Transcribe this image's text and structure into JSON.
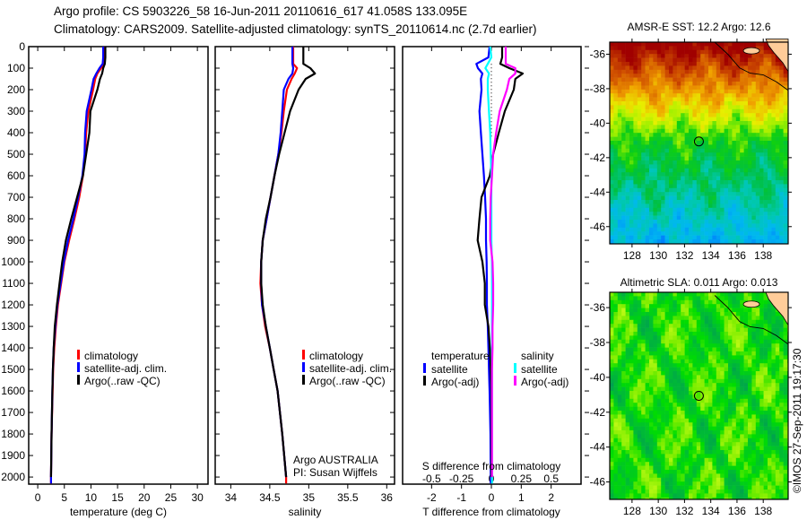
{
  "title": {
    "line1": "Argo profile: CS 5903226_58 16-Jun-2011 20110616_617 41.058S 133.095E",
    "line2": "Climatology: CARS2009. Satellite-adjusted climatology: synTS_20110614.nc (2.7d earlier)"
  },
  "credits": {
    "program": "Argo AUSTRALIA",
    "pi": "PI: Susan Wijffels",
    "copyright": "©IMOS 27-Sep-2011 19:17:30"
  },
  "colors": {
    "climatology": "#ff0000",
    "satellite": "#0000ff",
    "argo": "#000000",
    "sal_satellite": "#00ffff",
    "sal_argo": "#ff00ff",
    "land": "#ffcc99"
  },
  "chart_data": [
    {
      "type": "line",
      "id": "temperature",
      "xlabel": "temperature (deg C)",
      "ylabel": "depth",
      "xlim": [
        -1.7,
        32
      ],
      "ylim": [
        2033,
        0
      ],
      "xticks": [
        0,
        5,
        10,
        15,
        20,
        25,
        30
      ],
      "xtick_labels": [
        "0",
        "5",
        "10",
        "15",
        "20",
        "25",
        "30"
      ],
      "yticks": [
        0,
        100,
        200,
        300,
        400,
        500,
        600,
        700,
        800,
        900,
        1000,
        1100,
        1200,
        1300,
        1400,
        1500,
        1600,
        1700,
        1800,
        1900,
        2000
      ],
      "ytick_labels": [
        "0",
        "100",
        "200",
        "300",
        "400",
        "500",
        "600",
        "700",
        "800",
        "900",
        "1000",
        "1100",
        "1200",
        "1300",
        "1400",
        "1500",
        "1600",
        "1700",
        "1800",
        "1900",
        "2000"
      ],
      "legend": [
        "climatology",
        "satellite-adj. clim.",
        "Argo(..raw -QC)"
      ],
      "legend_placement": "lower-right",
      "depth": [
        0,
        50,
        80,
        100,
        125,
        150,
        200,
        300,
        400,
        500,
        600,
        700,
        800,
        900,
        1000,
        1100,
        1200,
        1300,
        1400,
        1500,
        1600,
        1800,
        2000,
        2030
      ],
      "series": [
        {
          "name": "climatology",
          "color": "#ff0000",
          "values": [
            12.5,
            12.5,
            12.4,
            11.9,
            11.2,
            10.8,
            10.4,
            9.5,
            9.1,
            8.9,
            8.5,
            7.8,
            6.9,
            5.9,
            5.0,
            4.4,
            3.8,
            3.4,
            3.1,
            2.9,
            2.8,
            2.6,
            2.5,
            2.5
          ]
        },
        {
          "name": "satellite-adj. clim.",
          "color": "#0000ff",
          "values": [
            12.3,
            12.3,
            12.2,
            11.6,
            11.0,
            10.5,
            10.1,
            9.2,
            8.9,
            8.8,
            8.4,
            7.6,
            6.7,
            5.7,
            4.9,
            4.3,
            3.7,
            3.3,
            3.0,
            2.85,
            2.75,
            2.6,
            2.5,
            2.5
          ]
        },
        {
          "name": "Argo(..raw -QC)",
          "color": "#000000",
          "values": [
            12.7,
            12.7,
            12.6,
            12.3,
            12.1,
            11.7,
            11.2,
            9.9,
            9.7,
            9.1,
            8.5,
            7.4,
            6.3,
            5.3,
            4.6,
            4.1,
            3.6,
            3.2,
            3.0,
            2.85,
            2.75,
            2.6,
            2.5,
            null
          ]
        }
      ]
    },
    {
      "type": "line",
      "id": "salinity",
      "xlabel": "salinity",
      "xlim": [
        33.8,
        36.1
      ],
      "ylim": [
        2033,
        0
      ],
      "xticks": [
        34,
        34.5,
        35,
        35.5,
        36
      ],
      "xtick_labels": [
        "34",
        "34.5",
        "35",
        "35.5",
        "36"
      ],
      "yticks": [
        0,
        100,
        200,
        300,
        400,
        500,
        600,
        700,
        800,
        900,
        1000,
        1100,
        1200,
        1300,
        1400,
        1500,
        1600,
        1700,
        1800,
        1900,
        2000
      ],
      "legend": [
        "climatology",
        "satellite-adj. clim.",
        "Argo(..raw -QC)"
      ],
      "legend_placement": "lower-right",
      "depth": [
        0,
        50,
        80,
        100,
        125,
        150,
        200,
        300,
        400,
        500,
        600,
        700,
        800,
        900,
        1000,
        1100,
        1200,
        1300,
        1400,
        1500,
        1600,
        1800,
        2000,
        2030
      ],
      "series": [
        {
          "name": "climatology",
          "color": "#ff0000",
          "values": [
            34.8,
            34.8,
            34.8,
            34.85,
            34.82,
            34.78,
            34.72,
            34.68,
            34.65,
            34.61,
            34.56,
            34.51,
            34.46,
            34.41,
            34.39,
            34.38,
            34.4,
            34.44,
            34.5,
            34.55,
            34.6,
            34.66,
            34.71,
            34.71
          ]
        },
        {
          "name": "satellite-adj. clim.",
          "color": "#0000ff",
          "values": [
            34.79,
            34.79,
            34.79,
            34.8,
            34.79,
            34.74,
            34.68,
            34.66,
            34.64,
            34.61,
            34.56,
            34.51,
            34.46,
            34.41,
            34.39,
            34.39,
            34.4,
            34.45,
            34.5,
            34.55,
            34.6,
            34.66,
            34.71,
            null
          ]
        },
        {
          "name": "Argo(..raw -QC)",
          "color": "#000000",
          "values": [
            34.93,
            34.93,
            34.93,
            35.02,
            35.08,
            34.96,
            34.87,
            34.76,
            34.69,
            34.62,
            34.56,
            34.51,
            34.45,
            34.41,
            34.39,
            34.39,
            34.41,
            34.45,
            34.5,
            34.55,
            34.6,
            34.66,
            34.71,
            null
          ]
        }
      ]
    },
    {
      "type": "line",
      "id": "difference",
      "xlabel": "T difference from climatology",
      "x2label": "S difference from climatology",
      "xlim": [
        -2.97,
        3.0
      ],
      "s_per_t": 0.25,
      "ylim": [
        2033,
        0
      ],
      "xticks": [
        -2,
        -1,
        0,
        1,
        2
      ],
      "xtick_labels": [
        "-2",
        "-1",
        "0",
        "1",
        "2"
      ],
      "x2ticks": [
        -0.5,
        -0.25,
        0,
        0.25,
        0.5
      ],
      "x2tick_labels": [
        "-0.5",
        "-0.25",
        "0",
        "0.25",
        "0.5"
      ],
      "yticks": [
        0,
        100,
        200,
        300,
        400,
        500,
        600,
        700,
        800,
        900,
        1000,
        1100,
        1200,
        1300,
        1400,
        1500,
        1600,
        1700,
        1800,
        1900,
        2000
      ],
      "legend_headers": [
        "temperature",
        "salinity"
      ],
      "legend": [
        "satellite",
        "Argo(-adj)",
        "satellite",
        "Argo(-adj)"
      ],
      "legend_placement": "lower-center",
      "depth": [
        0,
        50,
        80,
        100,
        125,
        150,
        200,
        300,
        400,
        500,
        600,
        700,
        800,
        900,
        1000,
        1100,
        1200,
        1300,
        1400,
        1500,
        1600,
        1800,
        2000,
        2030
      ],
      "series": [
        {
          "name": "temperature satellite",
          "unit": "T",
          "color": "#0000ff",
          "values": [
            -0.06,
            -0.1,
            -0.5,
            -0.45,
            -0.3,
            -0.35,
            -0.33,
            -0.4,
            -0.35,
            -0.3,
            -0.25,
            -0.21,
            -0.18,
            -0.18,
            -0.16,
            -0.15,
            -0.15,
            -0.12,
            -0.1,
            -0.08,
            -0.06,
            -0.03,
            -0.02,
            -0.02
          ]
        },
        {
          "name": "temperature Argo(-adj)",
          "unit": "T",
          "color": "#000000",
          "values": [
            0.36,
            0.36,
            0.3,
            0.6,
            1.05,
            0.8,
            0.75,
            0.45,
            0.25,
            0.06,
            -0.05,
            -0.33,
            -0.4,
            -0.46,
            -0.3,
            -0.22,
            -0.22,
            -0.1,
            -0.05,
            -0.02,
            0,
            0,
            0,
            null
          ]
        },
        {
          "name": "salinity satellite",
          "unit": "S",
          "color": "#00ffff",
          "values": [
            -0.01,
            0,
            -0.03,
            -0.05,
            -0.02,
            -0.03,
            -0.03,
            -0.02,
            -0.01,
            -0.005,
            0,
            0,
            0,
            0,
            0.005,
            0.005,
            0.005,
            0.005,
            0.005,
            0.005,
            0.005,
            0.005,
            0.005,
            0.005
          ]
        },
        {
          "name": "salinity Argo(-adj)",
          "unit": "S",
          "color": "#ff00ff",
          "values": [
            0.12,
            0.12,
            0.12,
            0.2,
            0.2,
            0.15,
            0.13,
            0.07,
            0.04,
            0.015,
            0.005,
            -0.005,
            -0.01,
            -0.01,
            0.01,
            0.015,
            0.015,
            0.01,
            0.01,
            0.005,
            0.005,
            0.005,
            0.005,
            null
          ]
        }
      ]
    },
    {
      "type": "heatmap",
      "id": "sst_map",
      "title": "AMSR-E SST: 12.2 Argo: 12.6",
      "xlim": [
        126.3,
        139.9
      ],
      "ylim": [
        -47.0,
        -35.3
      ],
      "xticks": [
        128,
        130,
        132,
        134,
        136,
        138
      ],
      "xtick_labels": [
        "128",
        "130",
        "132",
        "134",
        "136",
        "138"
      ],
      "yticks": [
        -36,
        -38,
        -40,
        -42,
        -44,
        -46
      ],
      "ytick_labels": [
        "-36",
        "-38",
        "-40",
        "-42",
        "-44",
        "-46"
      ],
      "value_range": [
        10,
        16
      ],
      "marker": {
        "lon": 133.095,
        "lat": -41.058
      }
    },
    {
      "type": "heatmap",
      "id": "sla_map",
      "title": "Altimetric SLA: 0.011 Argo: 0.013",
      "xlim": [
        126.3,
        139.9
      ],
      "ylim": [
        -47.0,
        -35.12
      ],
      "xticks": [
        128,
        130,
        132,
        134,
        136,
        138
      ],
      "xtick_labels": [
        "128",
        "130",
        "132",
        "134",
        "136",
        "138"
      ],
      "yticks": [
        -36,
        -38,
        -40,
        -42,
        -44,
        -46
      ],
      "ytick_labels": [
        "-36",
        "-38",
        "-40",
        "-42",
        "-44",
        "-46"
      ],
      "value_range": [
        -0.3,
        0.3
      ],
      "marker": {
        "lon": 133.095,
        "lat": -41.058
      }
    }
  ]
}
